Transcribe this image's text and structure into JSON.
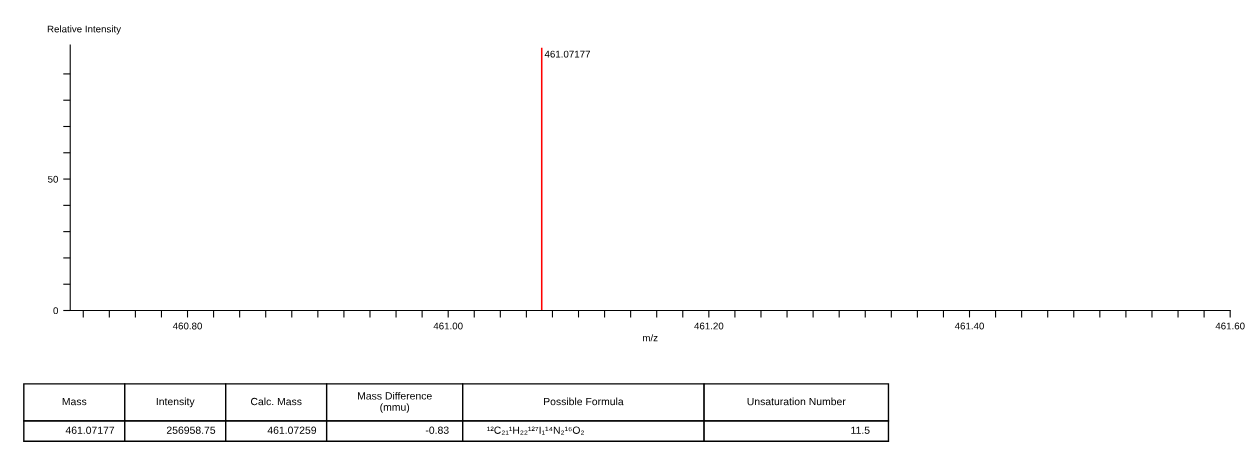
{
  "chart_data": [
    {
      "type": "bar",
      "ylabel": "Relative Intensity",
      "xlabel": "m/z",
      "x": [
        461.07177
      ],
      "values": [
        100
      ],
      "color": "#ff0000",
      "xlim": [
        460.71,
        461.6
      ],
      "ylim": [
        0,
        101
      ],
      "xticks": [
        {
          "value": 460.72,
          "label": null
        },
        {
          "value": 460.74,
          "label": null
        },
        {
          "value": 460.76,
          "label": null
        },
        {
          "value": 460.78,
          "label": null
        },
        {
          "value": 460.8,
          "label": "460.80"
        },
        {
          "value": 460.82,
          "label": null
        },
        {
          "value": 460.84,
          "label": null
        },
        {
          "value": 460.86,
          "label": null
        },
        {
          "value": 460.88,
          "label": null
        },
        {
          "value": 460.9,
          "label": null
        },
        {
          "value": 460.92,
          "label": null
        },
        {
          "value": 460.94,
          "label": null
        },
        {
          "value": 460.96,
          "label": null
        },
        {
          "value": 460.98,
          "label": null
        },
        {
          "value": 461.0,
          "label": "461.00"
        },
        {
          "value": 461.02,
          "label": null
        },
        {
          "value": 461.04,
          "label": null
        },
        {
          "value": 461.06,
          "label": null
        },
        {
          "value": 461.08,
          "label": null
        },
        {
          "value": 461.1,
          "label": null
        },
        {
          "value": 461.12,
          "label": null
        },
        {
          "value": 461.14,
          "label": null
        },
        {
          "value": 461.16,
          "label": null
        },
        {
          "value": 461.18,
          "label": null
        },
        {
          "value": 461.2,
          "label": "461.20"
        },
        {
          "value": 461.22,
          "label": null
        },
        {
          "value": 461.24,
          "label": null
        },
        {
          "value": 461.26,
          "label": null
        },
        {
          "value": 461.28,
          "label": null
        },
        {
          "value": 461.3,
          "label": null
        },
        {
          "value": 461.32,
          "label": null
        },
        {
          "value": 461.34,
          "label": null
        },
        {
          "value": 461.36,
          "label": null
        },
        {
          "value": 461.38,
          "label": null
        },
        {
          "value": 461.4,
          "label": "461.40"
        },
        {
          "value": 461.42,
          "label": null
        },
        {
          "value": 461.44,
          "label": null
        },
        {
          "value": 461.46,
          "label": null
        },
        {
          "value": 461.48,
          "label": null
        },
        {
          "value": 461.5,
          "label": null
        },
        {
          "value": 461.52,
          "label": null
        },
        {
          "value": 461.54,
          "label": null
        },
        {
          "value": 461.56,
          "label": null
        },
        {
          "value": 461.58,
          "label": null
        },
        {
          "value": 461.6,
          "label": "461.60"
        }
      ],
      "yticks": [
        0,
        {
          "value": 10,
          "label": null
        },
        {
          "value": 20,
          "label": null
        },
        {
          "value": 30,
          "label": null
        },
        {
          "value": 40,
          "label": null
        },
        50,
        {
          "value": 60,
          "label": null
        },
        {
          "value": 70,
          "label": null
        },
        {
          "value": 80,
          "label": null
        },
        {
          "value": 90,
          "label": null
        }
      ],
      "annotations": [
        {
          "text": "461.07177",
          "x": 461.07177,
          "y": 100
        }
      ],
      "grid": false,
      "legend": false
    },
    {
      "type": "other",
      "annotations": [
        "Mass",
        "Intensity",
        "Calc. Mass",
        "Mass Difference\n(mmu)",
        "Possible Formula",
        "Unsaturation Number",
        "461.07177",
        "256958.75",
        "461.07259",
        "-0.83",
        "¹²C₂₁¹H₂₂¹²⁷I₁¹⁴N₂¹⁶O₂",
        "11.5"
      ]
    }
  ]
}
